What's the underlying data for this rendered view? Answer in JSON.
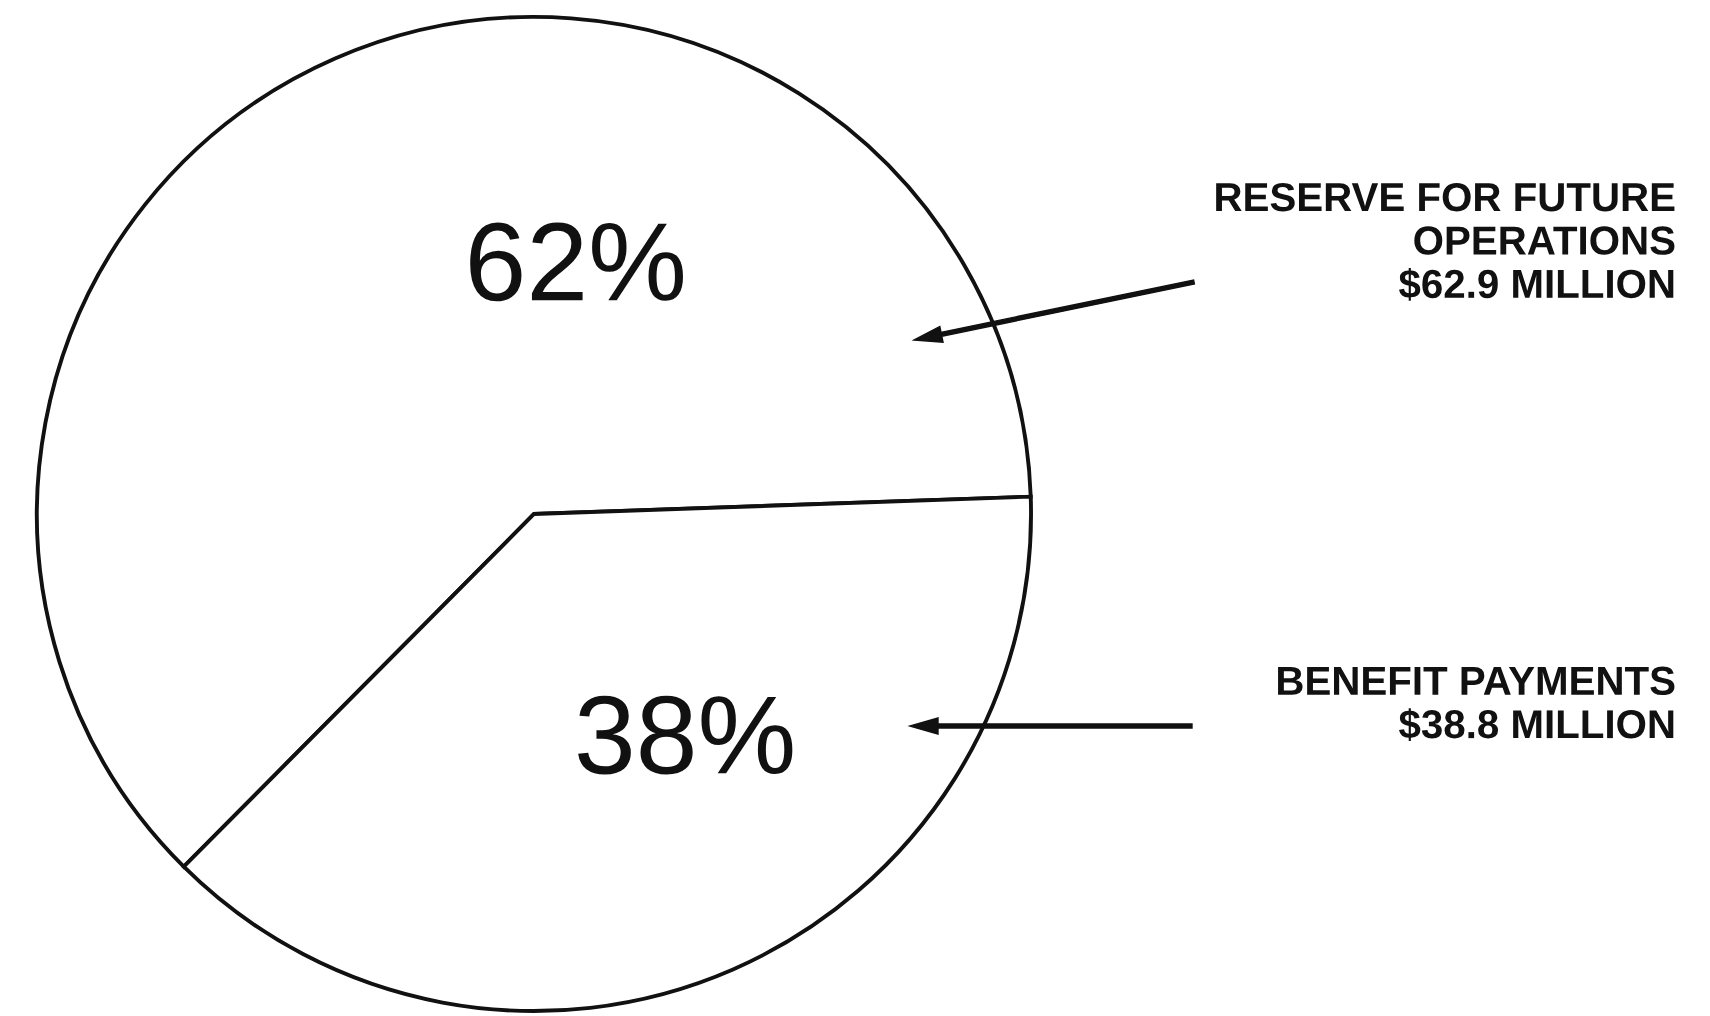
{
  "chart_data": {
    "type": "pie",
    "categories": [
      "RESERVE FOR FUTURE\nOPERATIONS\n$62.9 MILLION",
      "BENEFIT PAYMENTS\n$38.8 MILLION"
    ],
    "values": [
      62,
      38
    ],
    "value_labels": [
      "62%",
      "38%"
    ],
    "colors": [
      "#ffffff",
      "#ffffff"
    ]
  }
}
